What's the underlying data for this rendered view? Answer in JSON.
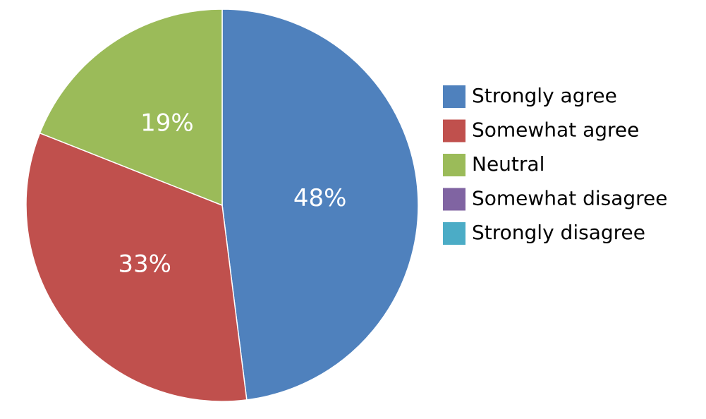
{
  "chart_data": {
    "type": "pie",
    "categories": [
      "Strongly agree",
      "Somewhat agree",
      "Neutral",
      "Somewhat disagree",
      "Strongly disagree"
    ],
    "values": [
      48,
      33,
      19,
      0,
      0
    ],
    "value_labels": [
      "48%",
      "33%",
      "19%",
      null,
      null
    ],
    "colors": [
      "#4f81bd",
      "#c0504d",
      "#9bbb59",
      "#8064a2",
      "#4bacc6"
    ],
    "legend": "right"
  }
}
